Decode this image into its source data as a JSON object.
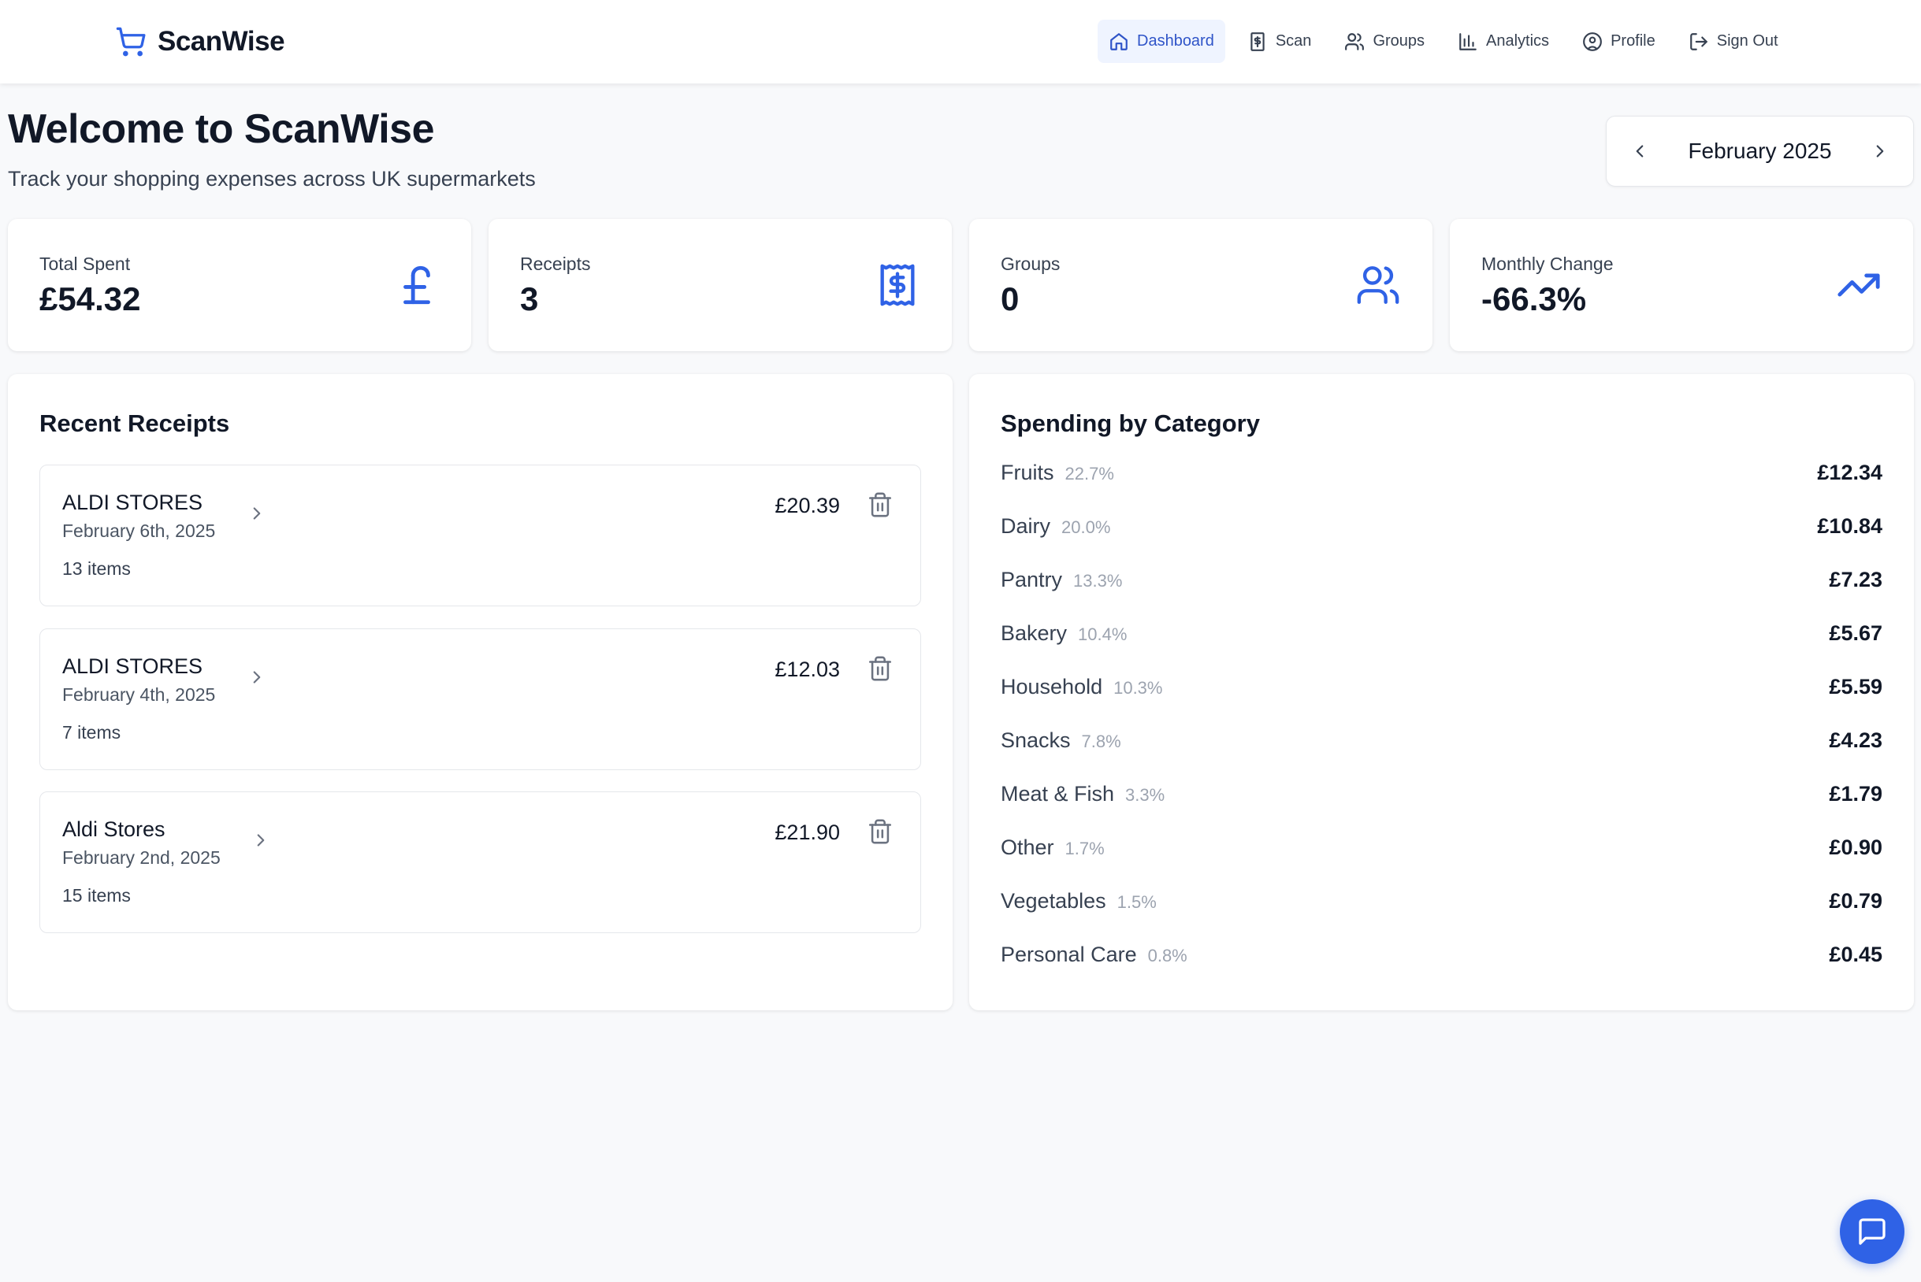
{
  "brand": {
    "name": "ScanWise",
    "icon": "shopping-cart-icon",
    "accent": "#2f62e6"
  },
  "nav": [
    {
      "label": "Dashboard",
      "icon": "home-icon",
      "active": true
    },
    {
      "label": "Scan",
      "icon": "receipt-dollar-icon",
      "active": false
    },
    {
      "label": "Groups",
      "icon": "users-icon",
      "active": false
    },
    {
      "label": "Analytics",
      "icon": "bar-chart-icon",
      "active": false
    },
    {
      "label": "Profile",
      "icon": "user-circle-icon",
      "active": false
    },
    {
      "label": "Sign Out",
      "icon": "log-out-icon",
      "active": false
    }
  ],
  "header": {
    "title": "Welcome to ScanWise",
    "subtitle": "Track your shopping expenses across UK supermarkets"
  },
  "month_picker": {
    "label": "February 2025"
  },
  "stats": [
    {
      "label": "Total Spent",
      "value": "£54.32",
      "icon": "pound-sign-icon"
    },
    {
      "label": "Receipts",
      "value": "3",
      "icon": "receipt-icon"
    },
    {
      "label": "Groups",
      "value": "0",
      "icon": "users-icon"
    },
    {
      "label": "Monthly Change",
      "value": "-66.3%",
      "icon": "trending-up-icon"
    }
  ],
  "recent_receipts": {
    "title": "Recent Receipts",
    "items": [
      {
        "store": "ALDI STORES",
        "date": "February 6th, 2025",
        "items": "13 items",
        "amount": "£20.39"
      },
      {
        "store": "ALDI STORES",
        "date": "February 4th, 2025",
        "items": "7 items",
        "amount": "£12.03"
      },
      {
        "store": "Aldi Stores",
        "date": "February 2nd, 2025",
        "items": "15 items",
        "amount": "£21.90"
      }
    ]
  },
  "spending_by_category": {
    "title": "Spending by Category",
    "rows": [
      {
        "name": "Fruits",
        "pct": "22.7%",
        "amount": "£12.34"
      },
      {
        "name": "Dairy",
        "pct": "20.0%",
        "amount": "£10.84"
      },
      {
        "name": "Pantry",
        "pct": "13.3%",
        "amount": "£7.23"
      },
      {
        "name": "Bakery",
        "pct": "10.4%",
        "amount": "£5.67"
      },
      {
        "name": "Household",
        "pct": "10.3%",
        "amount": "£5.59"
      },
      {
        "name": "Snacks",
        "pct": "7.8%",
        "amount": "£4.23"
      },
      {
        "name": "Meat & Fish",
        "pct": "3.3%",
        "amount": "£1.79"
      },
      {
        "name": "Other",
        "pct": "1.7%",
        "amount": "£0.90"
      },
      {
        "name": "Vegetables",
        "pct": "1.5%",
        "amount": "£0.79"
      },
      {
        "name": "Personal Care",
        "pct": "0.8%",
        "amount": "£0.45"
      }
    ]
  },
  "chat_button": {
    "icon": "message-square-icon"
  }
}
